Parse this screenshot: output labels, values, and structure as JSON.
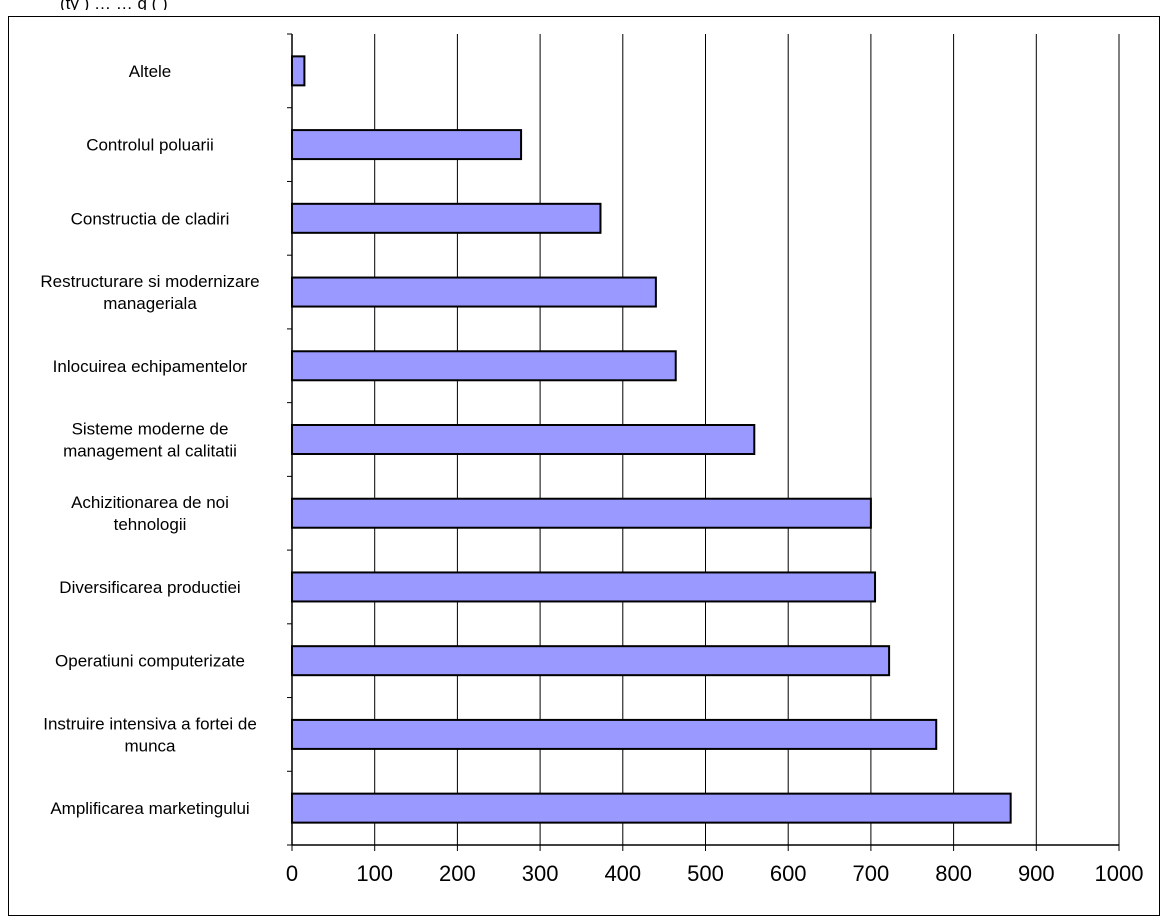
{
  "chart_data": {
    "type": "bar",
    "orientation": "horizontal",
    "categories": [
      "Altele",
      "Controlul poluarii",
      "Constructia de cladiri",
      "Restructurare si modernizare manageriala",
      "Inlocuirea echipamentelor",
      "Sisteme moderne de management al calitatii",
      "Achizitionarea de noi tehnologii",
      "Diversificarea productiei",
      "Operatiuni computerizate",
      "Instruire intensiva a fortei de munca",
      "Amplificarea marketingului"
    ],
    "category_lines": [
      [
        "Altele"
      ],
      [
        "Controlul poluarii"
      ],
      [
        "Constructia de cladiri"
      ],
      [
        "Restructurare si modernizare",
        "manageriala"
      ],
      [
        "Inlocuirea echipamentelor"
      ],
      [
        "Sisteme moderne de",
        "management al calitatii"
      ],
      [
        "Achizitionarea de noi",
        "tehnologii"
      ],
      [
        "Diversificarea productiei"
      ],
      [
        "Operatiuni computerizate"
      ],
      [
        "Instruire intensiva a fortei de",
        "munca"
      ],
      [
        "Amplificarea marketingului"
      ]
    ],
    "values": [
      15,
      277,
      373,
      440,
      464,
      559,
      700,
      705,
      722,
      779,
      869
    ],
    "xlim": [
      0,
      1000
    ],
    "xticks": [
      0,
      100,
      200,
      300,
      400,
      500,
      600,
      700,
      800,
      900,
      1000
    ],
    "grid": "vertical",
    "legend": "none",
    "title": "",
    "xlabel": "",
    "ylabel": "",
    "bar_color": "#9999FF",
    "edge_color": "#000000",
    "clipped_header_text": "(ty      ) …                 … g  (      )"
  }
}
